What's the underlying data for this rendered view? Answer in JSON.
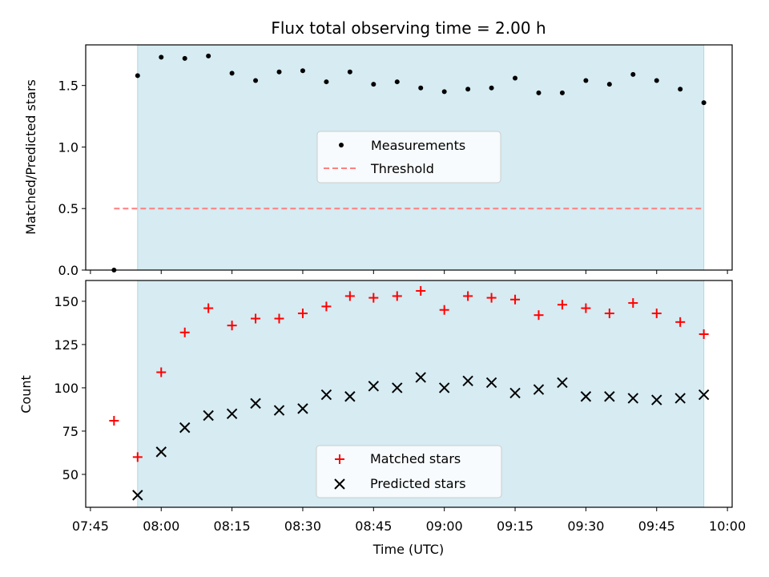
{
  "title": "Flux total observing time = 2.00 h",
  "colors": {
    "shade": "#add8e6",
    "measurement": "#000000",
    "threshold": "#ff7f7f",
    "matched": "#ff0000",
    "predicted": "#000000"
  },
  "chart_data": [
    {
      "type": "scatter",
      "panel": "top",
      "xlabel": "",
      "ylabel": "Matched/Predicted stars",
      "ylim": [
        0,
        1.83
      ],
      "yticks": [
        0.0,
        0.5,
        1.0,
        1.5
      ],
      "ytick_labels": [
        "0.0",
        "0.5",
        "1.0",
        "1.5"
      ],
      "shaded_span": [
        "07:55",
        "09:55"
      ],
      "legend": {
        "placement": "center",
        "items": [
          "Measurements",
          "Threshold"
        ]
      },
      "threshold": {
        "name": "Threshold",
        "y": 0.5,
        "x_range": [
          "07:50",
          "09:55"
        ]
      },
      "series": [
        {
          "name": "Measurements",
          "marker": "dot",
          "x": [
            "07:50",
            "07:55",
            "08:00",
            "08:05",
            "08:10",
            "08:15",
            "08:20",
            "08:25",
            "08:30",
            "08:35",
            "08:40",
            "08:45",
            "08:50",
            "08:55",
            "09:00",
            "09:05",
            "09:10",
            "09:15",
            "09:20",
            "09:25",
            "09:30",
            "09:35",
            "09:40",
            "09:45",
            "09:50",
            "09:55"
          ],
          "y": [
            0.0,
            1.58,
            1.73,
            1.72,
            1.74,
            1.6,
            1.54,
            1.61,
            1.62,
            1.53,
            1.61,
            1.51,
            1.53,
            1.48,
            1.45,
            1.47,
            1.48,
            1.56,
            1.44,
            1.44,
            1.54,
            1.51,
            1.59,
            1.54,
            1.47,
            1.36
          ]
        }
      ]
    },
    {
      "type": "scatter",
      "panel": "bottom",
      "xlabel": "Time (UTC)",
      "ylabel": "Count",
      "ylim": [
        31,
        162
      ],
      "yticks": [
        50,
        75,
        100,
        125,
        150
      ],
      "ytick_labels": [
        "50",
        "75",
        "100",
        "125",
        "150"
      ],
      "xticks": [
        "07:45",
        "08:00",
        "08:15",
        "08:30",
        "08:45",
        "09:00",
        "09:15",
        "09:30",
        "09:45",
        "10:00"
      ],
      "xlim": [
        "07:44",
        "10:01"
      ],
      "shaded_span": [
        "07:55",
        "09:55"
      ],
      "legend": {
        "placement": "lower center",
        "items": [
          "Matched stars",
          "Predicted stars"
        ]
      },
      "series": [
        {
          "name": "Matched stars",
          "marker": "plus",
          "x": [
            "07:50",
            "07:55",
            "08:00",
            "08:05",
            "08:10",
            "08:15",
            "08:20",
            "08:25",
            "08:30",
            "08:35",
            "08:40",
            "08:45",
            "08:50",
            "08:55",
            "09:00",
            "09:05",
            "09:10",
            "09:15",
            "09:20",
            "09:25",
            "09:30",
            "09:35",
            "09:40",
            "09:45",
            "09:50",
            "09:55"
          ],
          "y": [
            81,
            60,
            109,
            132,
            146,
            136,
            140,
            140,
            143,
            147,
            153,
            152,
            153,
            156,
            145,
            153,
            152,
            151,
            142,
            148,
            146,
            143,
            149,
            143,
            138,
            131
          ]
        },
        {
          "name": "Predicted stars",
          "marker": "x",
          "x": [
            "07:55",
            "08:00",
            "08:05",
            "08:10",
            "08:15",
            "08:20",
            "08:25",
            "08:30",
            "08:35",
            "08:40",
            "08:45",
            "08:50",
            "08:55",
            "09:00",
            "09:05",
            "09:10",
            "09:15",
            "09:20",
            "09:25",
            "09:30",
            "09:35",
            "09:40",
            "09:45",
            "09:50",
            "09:55"
          ],
          "y": [
            38,
            63,
            77,
            84,
            85,
            91,
            87,
            88,
            96,
            95,
            101,
            100,
            106,
            100,
            104,
            103,
            97,
            99,
            103,
            95,
            95,
            94,
            93,
            94,
            96
          ]
        }
      ]
    }
  ]
}
